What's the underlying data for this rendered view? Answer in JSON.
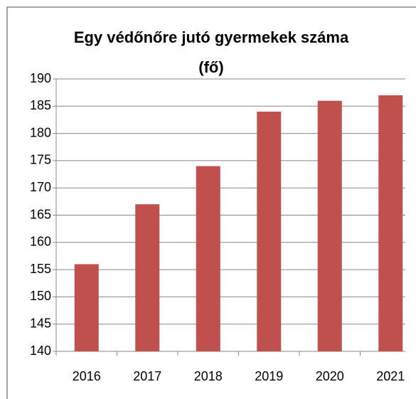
{
  "chart_data": {
    "type": "bar",
    "title": "Egy védőnőre jutó gyermekek száma (fő)",
    "categories": [
      "2016",
      "2017",
      "2018",
      "2019",
      "2020",
      "2021"
    ],
    "values": [
      156,
      167,
      174,
      184,
      186,
      187
    ],
    "color": "#c0504d",
    "ylim": [
      140,
      190
    ],
    "yticks": [
      140,
      145,
      150,
      155,
      160,
      165,
      170,
      175,
      180,
      185,
      190
    ],
    "grid": true
  }
}
